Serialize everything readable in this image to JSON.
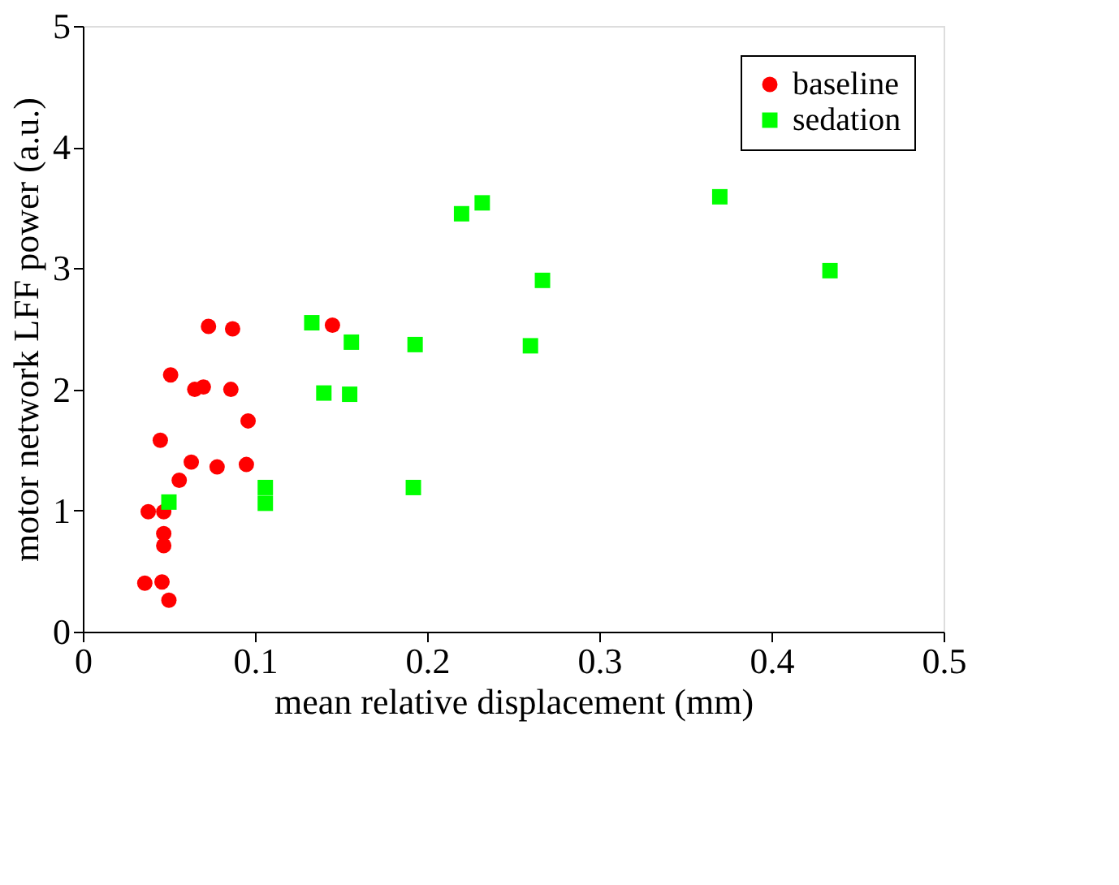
{
  "chart_data": {
    "type": "scatter",
    "xlabel": "mean relative displacement (mm)",
    "ylabel": "motor network LFF power (a.u.)",
    "xlim": [
      0,
      0.5
    ],
    "xticks": [
      0,
      0.1,
      0.2,
      0.3,
      0.4,
      0.5
    ],
    "ylim": [
      0,
      5
    ],
    "yticks": [
      0,
      1,
      2,
      3,
      4,
      5
    ],
    "grid": false,
    "legend": "top right",
    "series": [
      {
        "name": "baseline",
        "color": "#ff0000",
        "marker": "circle",
        "x": [
          0.036,
          0.046,
          0.05,
          0.038,
          0.047,
          0.047,
          0.047,
          0.045,
          0.056,
          0.063,
          0.078,
          0.095,
          0.096,
          0.051,
          0.065,
          0.07,
          0.086,
          0.073,
          0.087,
          0.145
        ],
        "values": [
          0.4,
          0.41,
          0.26,
          0.99,
          0.99,
          0.81,
          0.71,
          1.58,
          1.25,
          1.4,
          1.36,
          1.38,
          1.74,
          2.12,
          2.0,
          2.02,
          2.0,
          2.52,
          2.5,
          2.53
        ]
      },
      {
        "name": "sedation",
        "color": "#00ff00",
        "marker": "square",
        "x": [
          0.05,
          0.106,
          0.106,
          0.192,
          0.133,
          0.156,
          0.193,
          0.26,
          0.14,
          0.155,
          0.22,
          0.232,
          0.37,
          0.267,
          0.434
        ],
        "values": [
          1.07,
          1.19,
          1.06,
          1.19,
          2.55,
          2.39,
          2.37,
          2.36,
          1.97,
          1.96,
          3.45,
          3.54,
          3.59,
          2.9,
          2.98
        ]
      }
    ]
  }
}
